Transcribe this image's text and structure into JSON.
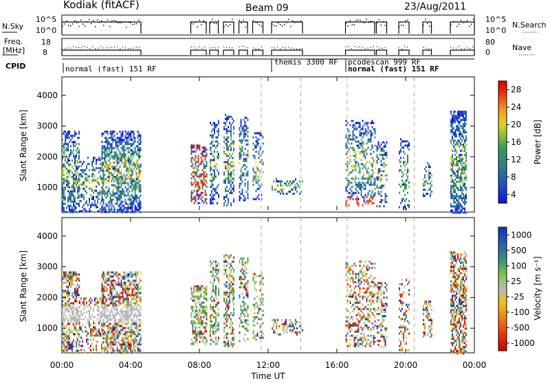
{
  "header": {
    "station": "Kodiak (fitACF)",
    "beam": "Beam 09",
    "date": "23/Aug/2011"
  },
  "noise_panel": {
    "left_label": "N.Sky",
    "right_label": "N.Search",
    "ticks_left": [
      "10^5",
      "10^0"
    ],
    "ticks_right": [
      "10^5",
      "10^0"
    ]
  },
  "freq_panel": {
    "left_label_line1": "Freq.",
    "left_label_line2": "[MHz]",
    "right_label": "Nave",
    "ticks_left": [
      "18",
      "8"
    ],
    "ticks_right": [
      "80",
      "0"
    ]
  },
  "cpid": {
    "label": "CPID",
    "modes": [
      {
        "name": "normal (fast) 151 RF",
        "start_hr": 0.0
      },
      {
        "name": "themis 3300 RF",
        "start_hr": 12.2
      },
      {
        "name": "pcodescan 999 RF",
        "start_hr": 16.6
      },
      {
        "name": "normal (fast) 151 RF",
        "start_hr": 16.6
      }
    ]
  },
  "x_axis": {
    "label": "Time UT",
    "ticks": [
      "00:00",
      "04:00",
      "08:00",
      "12:00",
      "16:00",
      "20:00",
      "00:00"
    ],
    "range_hours": [
      0,
      24
    ]
  },
  "chart_data": [
    {
      "type": "heatmap",
      "name": "power",
      "ylabel": "Slant Range [km]",
      "yticks": [
        "1000",
        "2000",
        "3000",
        "4000"
      ],
      "ylim": [
        200,
        4600
      ],
      "colorbar": {
        "label": "Power [dB]",
        "ticks": [
          "4",
          "8",
          "12",
          "16",
          "20",
          "24",
          "28"
        ],
        "colors": [
          "#1010e0",
          "#2050c0",
          "#2e7e8e",
          "#3a9a5a",
          "#80c040",
          "#e8d020",
          "#f09020",
          "#e83010",
          "#e00000"
        ]
      }
    },
    {
      "type": "heatmap",
      "name": "velocity",
      "ylabel": "Slant Range [km]",
      "yticks": [
        "1000",
        "2000",
        "3000",
        "4000"
      ],
      "ylim": [
        200,
        4600
      ],
      "colorbar": {
        "label": "Velocity [m s⁻¹]",
        "ticks": [
          "1000",
          "500",
          "100",
          "25",
          "-25",
          "-100",
          "-500",
          "-1000"
        ],
        "colors": [
          "#1030c0",
          "#2a60b0",
          "#3c9a6c",
          "#8ec452",
          "#b8b8b8",
          "#f0c020",
          "#f08a10",
          "#e83810",
          "#d00000"
        ]
      }
    }
  ]
}
